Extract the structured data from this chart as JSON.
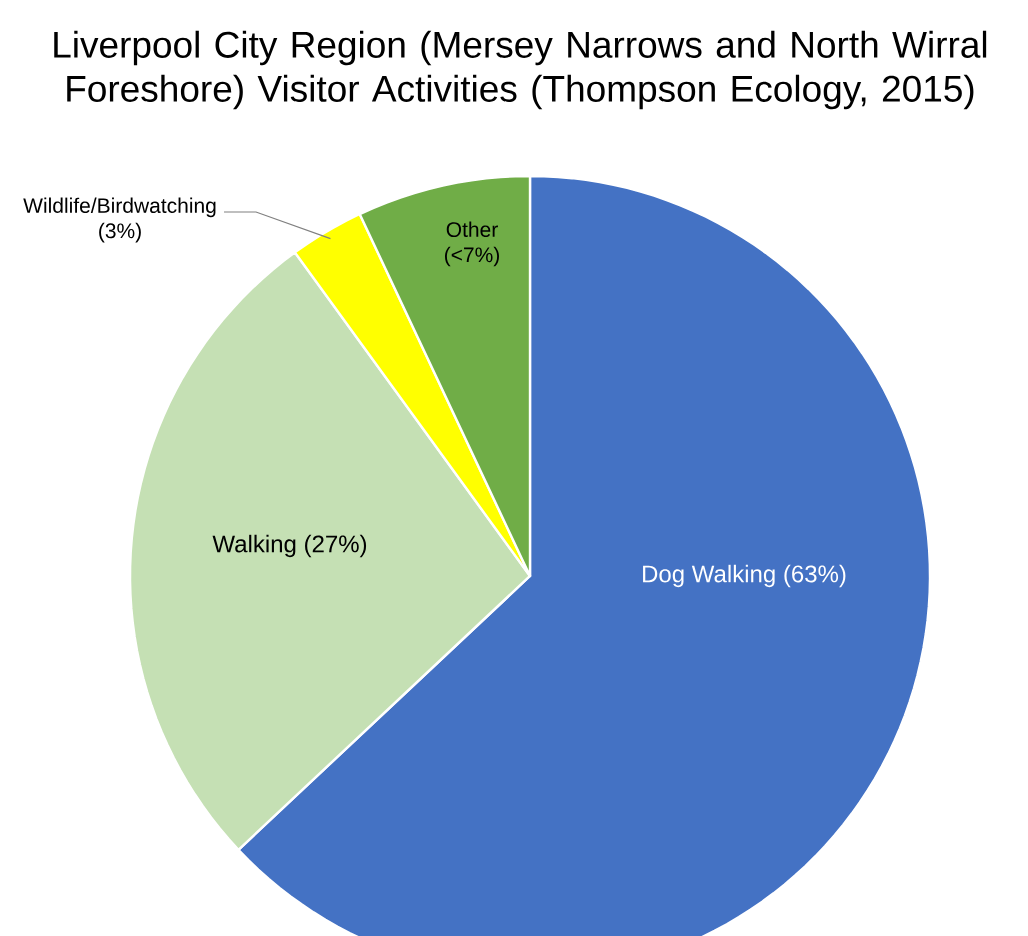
{
  "chart_data": {
    "type": "pie",
    "title": "Liverpool City Region (Mersey Narrows and North Wirral Foreshore) Visitor Activities (Thompson Ecology, 2015)",
    "categories": [
      "Dog Walking",
      "Walking",
      "Wildlife/Birdwatching",
      "Other"
    ],
    "values": [
      63,
      27,
      3,
      7
    ],
    "value_labels": [
      "(63%)",
      "(27%)",
      "(3%)",
      "(<7%)"
    ],
    "colors": [
      "#4472c4",
      "#c5e0b4",
      "#ffff00",
      "#70ad47"
    ]
  }
}
